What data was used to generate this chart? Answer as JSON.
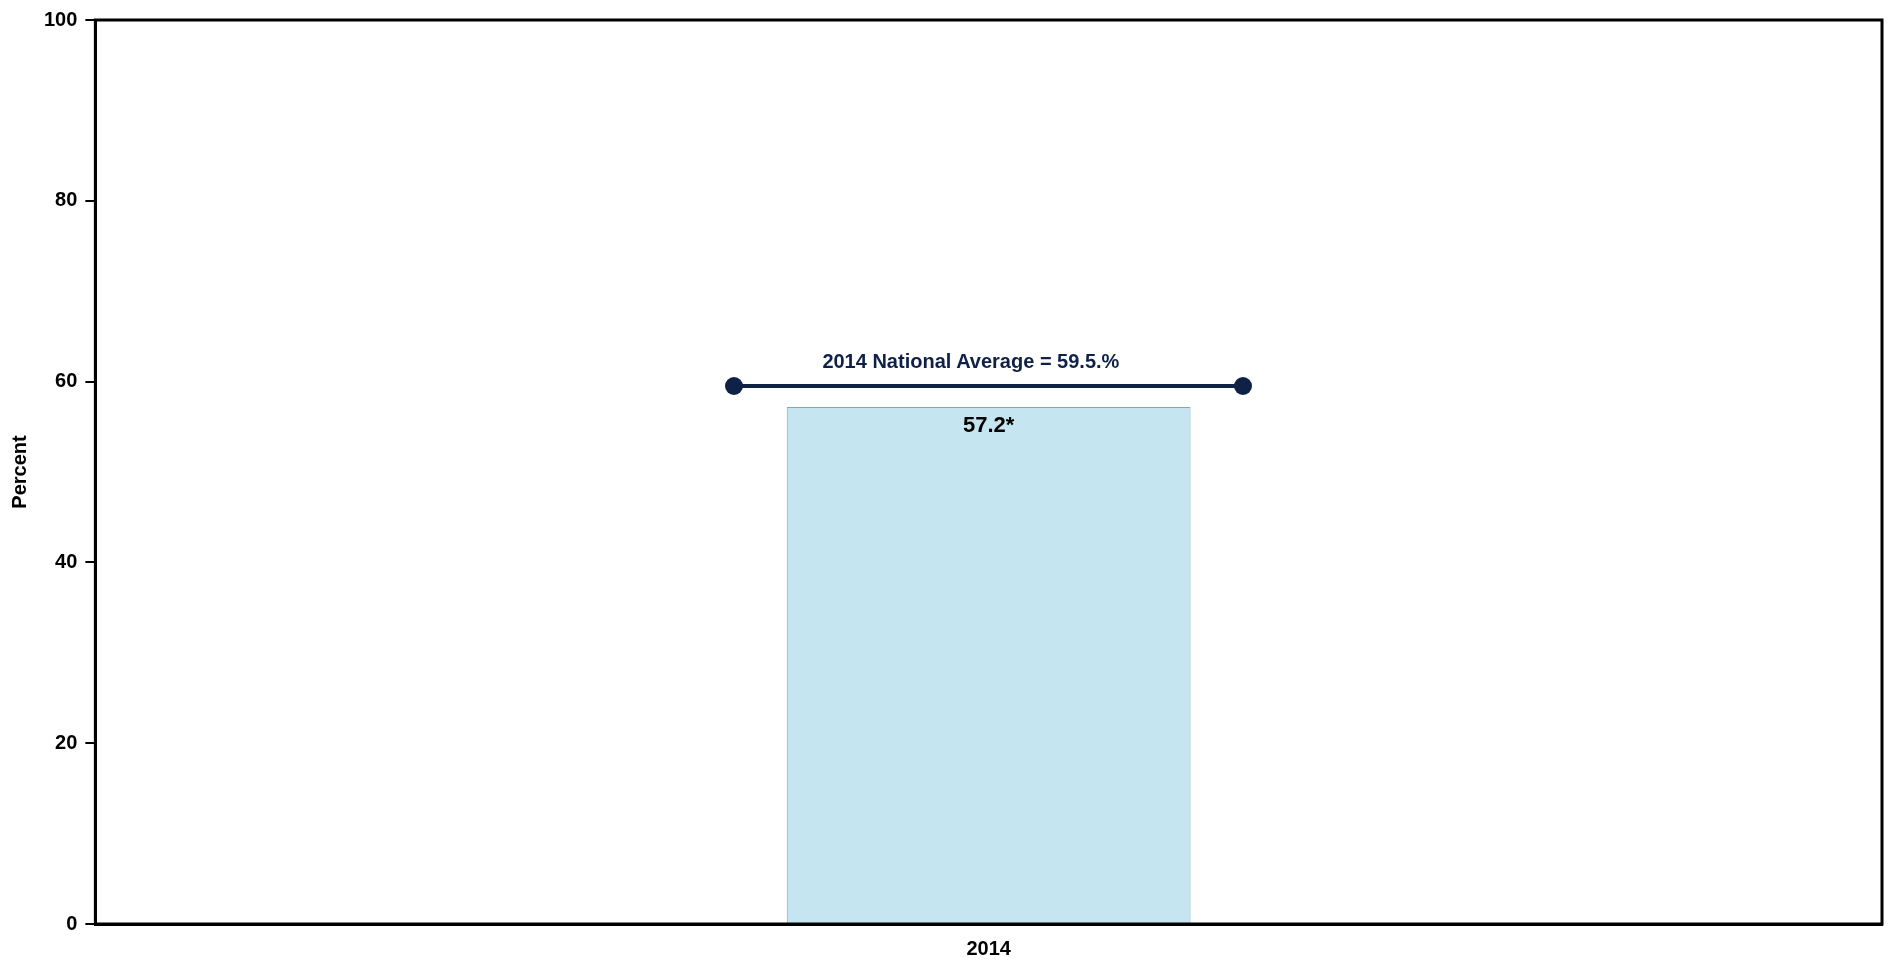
{
  "chart_data": {
    "type": "bar",
    "ylabel": "Percent",
    "categories": [
      "2014"
    ],
    "series": [
      {
        "color": "#c5e6f0",
        "values": [
          57.2
        ],
        "value_labels": [
          "57.2*"
        ]
      }
    ],
    "ylim": [
      0,
      100
    ],
    "yticks": [
      0,
      20,
      40,
      60,
      80,
      100
    ],
    "grid": false,
    "legend": false,
    "ref_lines": [
      {
        "axis": "y",
        "value": 59.5,
        "label": "2014 National Average = 59.5.%",
        "color": "#0f2147"
      }
    ]
  }
}
